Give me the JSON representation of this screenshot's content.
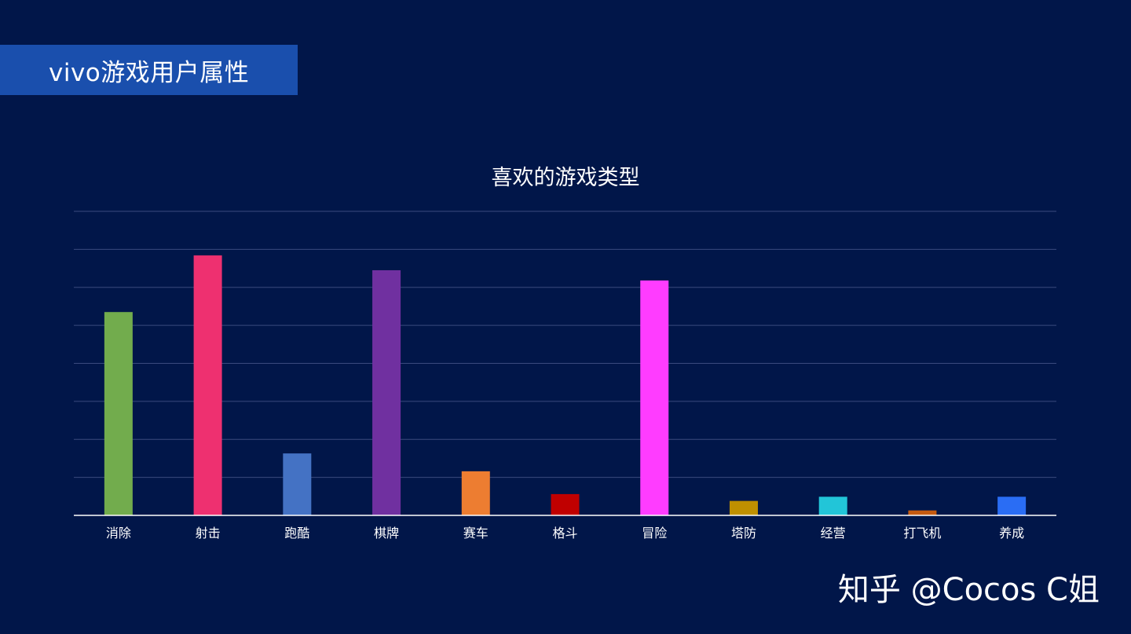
{
  "header": {
    "title": "vivo游戏用户属性"
  },
  "watermark": {
    "text": "知乎 @Cocos C姐"
  },
  "chart_data": {
    "type": "bar",
    "title": "喜欢的游戏类型",
    "xlabel": "",
    "ylabel": "",
    "ylim": [
      0,
      8
    ],
    "grid": true,
    "legend": "none",
    "categories": [
      "消除",
      "射击",
      "跑酷",
      "棋牌",
      "赛车",
      "格斗",
      "冒险",
      "塔防",
      "经营",
      "打飞机",
      "养成"
    ],
    "values": [
      5.35,
      6.84,
      1.63,
      6.45,
      1.16,
      0.56,
      6.18,
      0.38,
      0.49,
      0.13,
      0.49
    ],
    "colors": [
      "#72ac4d",
      "#ee3070",
      "#4472c4",
      "#7030a0",
      "#ed7d31",
      "#c00000",
      "#ff3cff",
      "#bf9000",
      "#22c5d8",
      "#c55a11",
      "#2a6df4"
    ],
    "gridline_color": "#3a4a7e",
    "axis_color": "#ffffff"
  }
}
